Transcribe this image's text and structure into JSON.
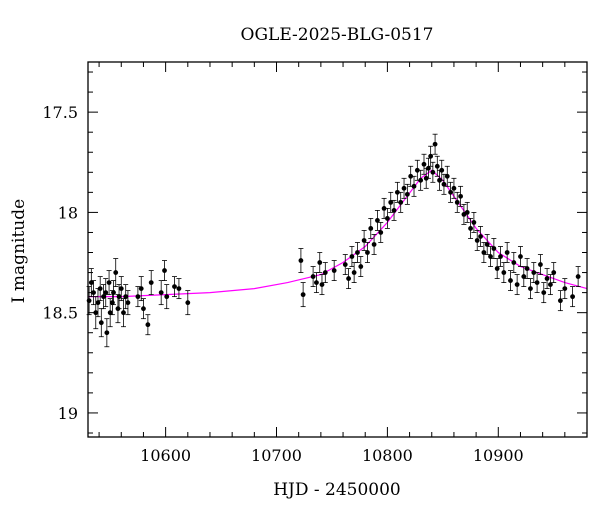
{
  "chart_data": {
    "type": "scatter",
    "title": "OGLE-2025-BLG-0517",
    "xlabel": "HJD - 2450000",
    "ylabel": "I magnitude",
    "xlim": [
      10530,
      10980
    ],
    "ylim": [
      19.12,
      17.25
    ],
    "y_inverted": true,
    "grid": false,
    "x_ticks": [
      10600,
      10700,
      10800,
      10900
    ],
    "x_tick_labels": [
      "10600",
      "10700",
      "10800",
      "10900"
    ],
    "y_ticks": [
      17.5,
      18,
      18.5,
      19
    ],
    "y_tick_labels": [
      "17.5",
      "18",
      "18.5",
      "19"
    ],
    "colors": {
      "data": "#000000",
      "model": "#ff00ff"
    },
    "model": {
      "name": "",
      "x": [
        10530,
        10560,
        10600,
        10640,
        10680,
        10710,
        10740,
        10760,
        10780,
        10800,
        10815,
        10830,
        10840,
        10850,
        10865,
        10880,
        10900,
        10920,
        10940,
        10960,
        10980
      ],
      "y": [
        18.42,
        18.42,
        18.41,
        18.4,
        18.38,
        18.35,
        18.31,
        18.25,
        18.17,
        18.05,
        17.94,
        17.83,
        17.79,
        17.84,
        17.96,
        18.08,
        18.2,
        18.27,
        18.31,
        18.35,
        18.38
      ]
    },
    "series": [
      {
        "name": "",
        "x": [
          10531,
          10533,
          10535,
          10537,
          10539,
          10541,
          10542,
          10544,
          10546,
          10547,
          10549,
          10550,
          10552,
          10553,
          10555,
          10557,
          10558,
          10560,
          10562,
          10564,
          10566,
          10575,
          10578,
          10580,
          10584,
          10587,
          10596,
          10599,
          10601,
          10608,
          10612,
          10620,
          10722,
          10724,
          10733,
          10736,
          10739,
          10741,
          10744,
          10752,
          10762,
          10765,
          10768,
          10770,
          10773,
          10776,
          10779,
          10782,
          10785,
          10788,
          10791,
          10794,
          10797,
          10800,
          10803,
          10806,
          10809,
          10812,
          10815,
          10818,
          10821,
          10824,
          10827,
          10830,
          10833,
          10835,
          10837,
          10839,
          10841,
          10843,
          10845,
          10847,
          10849,
          10851,
          10854,
          10857,
          10860,
          10863,
          10866,
          10869,
          10872,
          10875,
          10878,
          10881,
          10884,
          10887,
          10890,
          10893,
          10896,
          10899,
          10902,
          10905,
          10908,
          10911,
          10914,
          10917,
          10920,
          10923,
          10926,
          10929,
          10932,
          10935,
          10938,
          10941,
          10944,
          10947,
          10950,
          10956,
          10960,
          10967,
          10972
        ],
        "y": [
          18.44,
          18.35,
          18.4,
          18.5,
          18.45,
          18.38,
          18.55,
          18.42,
          18.4,
          18.6,
          18.35,
          18.5,
          18.45,
          18.4,
          18.3,
          18.48,
          18.42,
          18.38,
          18.5,
          18.42,
          18.45,
          18.42,
          18.38,
          18.48,
          18.56,
          18.35,
          18.4,
          18.29,
          18.42,
          18.37,
          18.38,
          18.45,
          18.24,
          18.41,
          18.32,
          18.35,
          18.25,
          18.36,
          18.3,
          18.29,
          18.26,
          18.33,
          18.22,
          18.3,
          18.2,
          18.27,
          18.14,
          18.2,
          18.08,
          18.16,
          18.04,
          18.1,
          17.98,
          18.03,
          17.95,
          17.99,
          17.9,
          17.95,
          17.88,
          17.91,
          17.82,
          17.87,
          17.79,
          17.84,
          17.76,
          17.83,
          17.78,
          17.72,
          17.8,
          17.66,
          17.77,
          17.84,
          17.79,
          17.86,
          17.82,
          17.9,
          17.88,
          17.95,
          17.92,
          18.01,
          18.0,
          18.08,
          18.05,
          18.14,
          18.12,
          18.2,
          18.16,
          18.22,
          18.18,
          18.28,
          18.22,
          18.3,
          18.2,
          18.34,
          18.25,
          18.36,
          18.22,
          18.32,
          18.28,
          18.38,
          18.3,
          18.35,
          18.26,
          18.4,
          18.33,
          18.36,
          18.3,
          18.44,
          18.38,
          18.42,
          18.32
        ],
        "err": [
          0.07,
          0.07,
          0.06,
          0.08,
          0.07,
          0.06,
          0.07,
          0.06,
          0.07,
          0.07,
          0.06,
          0.07,
          0.06,
          0.06,
          0.07,
          0.07,
          0.06,
          0.06,
          0.07,
          0.06,
          0.06,
          0.05,
          0.06,
          0.05,
          0.05,
          0.06,
          0.06,
          0.05,
          0.06,
          0.05,
          0.05,
          0.06,
          0.06,
          0.06,
          0.05,
          0.05,
          0.05,
          0.05,
          0.05,
          0.05,
          0.05,
          0.05,
          0.05,
          0.05,
          0.05,
          0.05,
          0.05,
          0.05,
          0.05,
          0.05,
          0.05,
          0.05,
          0.05,
          0.05,
          0.05,
          0.05,
          0.05,
          0.05,
          0.05,
          0.05,
          0.05,
          0.05,
          0.05,
          0.05,
          0.05,
          0.05,
          0.05,
          0.05,
          0.05,
          0.05,
          0.05,
          0.05,
          0.05,
          0.05,
          0.05,
          0.05,
          0.05,
          0.05,
          0.05,
          0.05,
          0.05,
          0.05,
          0.05,
          0.05,
          0.05,
          0.05,
          0.05,
          0.05,
          0.05,
          0.05,
          0.05,
          0.05,
          0.05,
          0.05,
          0.05,
          0.05,
          0.05,
          0.05,
          0.05,
          0.05,
          0.05,
          0.05,
          0.05,
          0.05,
          0.05,
          0.05,
          0.05,
          0.05,
          0.05,
          0.05,
          0.05
        ]
      }
    ]
  }
}
